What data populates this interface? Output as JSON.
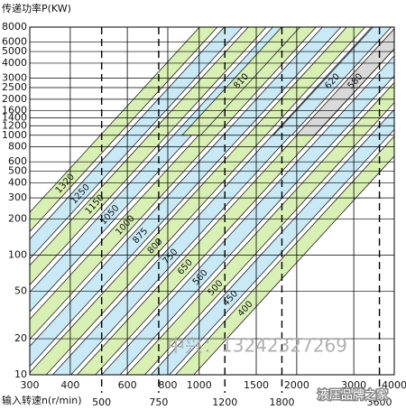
{
  "chart_data": {
    "type": "band",
    "y_label": "传递功率P(KW)",
    "x_label": "输入转速n(r/min)",
    "log_x": true,
    "log_y": true,
    "xlim": [
      300,
      4000
    ],
    "ylim": [
      10,
      8000
    ],
    "xticks": [
      300,
      400,
      600,
      800,
      1000,
      1500,
      2000,
      3000,
      4000
    ],
    "xticks2": [
      500,
      750,
      1200,
      1800,
      3600
    ],
    "yticks": [
      10,
      20,
      50,
      100,
      200,
      300,
      400,
      500,
      600,
      800,
      1000,
      1200,
      1400,
      1600,
      2000,
      2500,
      3000,
      4000,
      5000,
      6000,
      8000
    ],
    "bands": [
      {
        "name": "1320",
        "color": "#d9f0b4",
        "p": [
          10,
          8000
        ],
        "x_low": [
          104,
          118
        ],
        "x_high": [
          1003,
          1138
        ]
      },
      {
        "name": "1250",
        "color": "#c8e9f5",
        "p": [
          10,
          8000
        ],
        "x_low": [
          124,
          141
        ],
        "x_high": [
          1195,
          1359
        ]
      },
      {
        "name": "1150",
        "color": "#d9f0b4",
        "p": [
          10,
          8000
        ],
        "x_low": [
          147,
          167
        ],
        "x_high": [
          1417,
          1610
        ]
      },
      {
        "name": "1050",
        "color": "#c8e9f5",
        "p": [
          10,
          8000
        ],
        "x_low": [
          175,
          199
        ],
        "x_high": [
          1687,
          1918
        ]
      },
      {
        "name": "1000",
        "color": "#d9f0b4",
        "p": [
          10,
          8000
        ],
        "x_low": [
          209,
          238
        ],
        "x_high": [
          2015,
          2294
        ]
      },
      {
        "name": "875",
        "color": "#c8e9f5",
        "p": [
          10,
          8000
        ],
        "x_low": [
          249,
          284
        ],
        "x_high": [
          2400,
          2738
        ]
      },
      {
        "name": "800",
        "color": "#d9f0b4",
        "p": [
          10,
          8000
        ],
        "x_low": [
          296,
          337
        ],
        "x_high": [
          2853,
          3249
        ]
      },
      {
        "name": "750",
        "color": "#c8e9f5",
        "p": [
          10,
          8000
        ],
        "x_low": [
          353,
          402
        ],
        "x_high": [
          3403,
          3875
        ]
      },
      {
        "name": "650",
        "color": "#d9f0b4",
        "p": [
          10,
          8000
        ],
        "x_low": [
          420,
          478
        ],
        "x_high": [
          4049,
          4608
        ]
      },
      {
        "name": "560",
        "color": "#c8e9f5",
        "p": [
          10,
          8000
        ],
        "x_low": [
          500,
          570
        ],
        "x_high": [
          4820,
          5495
        ]
      },
      {
        "name": "500",
        "color": "#d9f0b4",
        "p": [
          10,
          8000
        ],
        "x_low": [
          596,
          679
        ],
        "x_high": [
          5745,
          6546
        ]
      },
      {
        "name": "450",
        "color": "#c8e9f5",
        "p": [
          10,
          8000
        ],
        "x_low": [
          710,
          809
        ],
        "x_high": [
          6844,
          7799
        ]
      },
      {
        "name": "400",
        "color": "#d9f0b4",
        "p": [
          10,
          8000
        ],
        "x_low": [
          845,
          962
        ],
        "x_high": [
          8146,
          9274
        ]
      },
      {
        "name": "810",
        "color": "#d9f0b4",
        "p": [
          1000,
          8000
        ],
        "x_low": [
          886,
          1010
        ],
        "x_high": [
          1798,
          2046
        ]
      },
      {
        "name": "620",
        "color": "#c8e9f5",
        "p": [
          1000,
          8000
        ],
        "x_low": [
          1694,
          1930
        ],
        "x_high": [
          3438,
          3915
        ]
      },
      {
        "name": "580",
        "color": "#d9d9d9",
        "p": [
          1000,
          8000
        ],
        "x_low": [
          1993,
          2270
        ],
        "x_high": [
          4045,
          4610
        ]
      }
    ],
    "watermarks": [
      "中兴：13242327269",
      "液压品牌之家"
    ]
  }
}
